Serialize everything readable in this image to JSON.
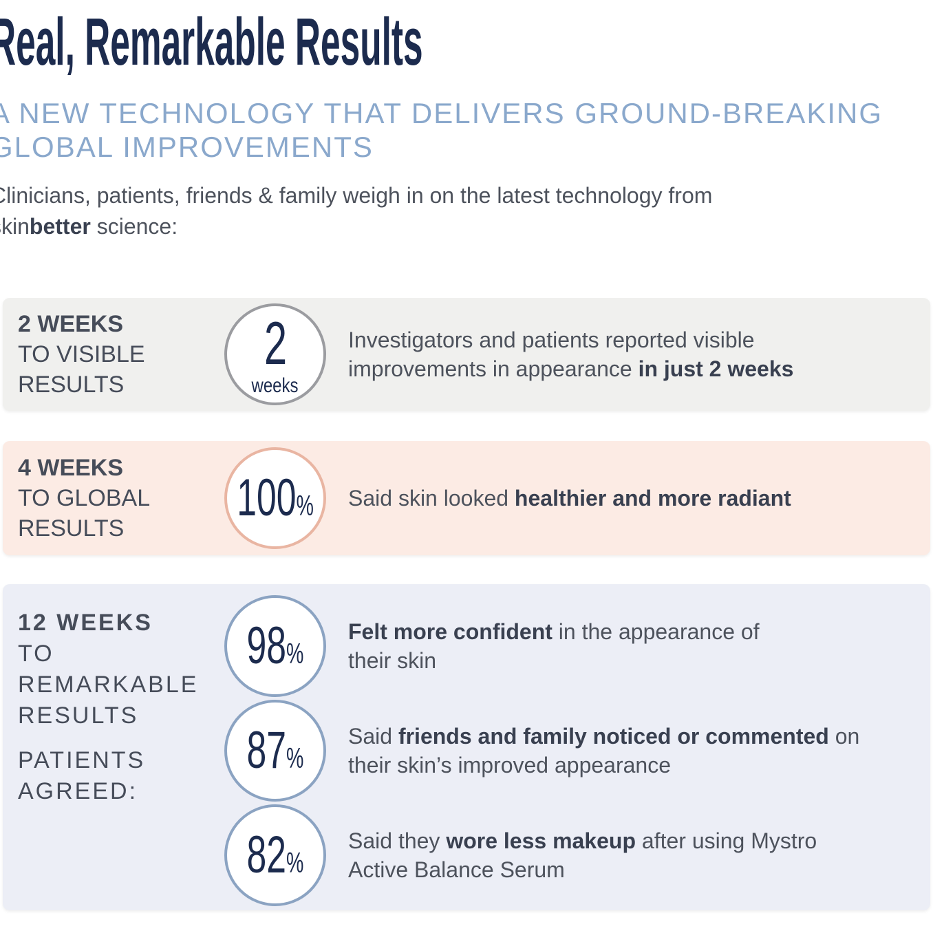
{
  "colors": {
    "navy": "#1c2b4e",
    "subtitle-blue": "#8aa8cc",
    "text-gray": "#4d525c",
    "bold-gray": "#394050",
    "label-gray": "#464c59",
    "band1-bg": "#f0f0ee",
    "band2-bg": "#fcebe4",
    "band3-bg": "#eceef6",
    "circle1-border": "#9b9ca0",
    "circle2-border": "#e9b5a2",
    "circle3-border": "#8ba3c2"
  },
  "header": {
    "title": "Real, Remarkable Results",
    "subtitle_line1": "A NEW TECHNOLOGY THAT DELIVERS GROUND-BREAKING",
    "subtitle_line2": "GLOBAL IMPROVEMENTS",
    "intro_line1": "Clinicians, patients, friends & family weigh in on the latest technology from",
    "intro_line2_pre": "skin",
    "intro_line2_bold": "better",
    "intro_line2_post": " science:"
  },
  "bands": [
    {
      "label_bold": "2 WEEKS",
      "label_line2": "TO VISIBLE",
      "label_line3": "RESULTS",
      "circle_number": "2",
      "circle_unit": "weeks",
      "text_pre": "Investigators and patients reported visible improvements in appearance ",
      "text_bold": "in just 2 weeks",
      "text_post": ""
    },
    {
      "label_bold": "4 WEEKS",
      "label_line2": "TO GLOBAL",
      "label_line3": "RESULTS",
      "circle_number": "100",
      "circle_pct": "%",
      "text_pre": "Said skin looked ",
      "text_bold": "healthier and more radiant",
      "text_post": ""
    },
    {
      "label_bold": "12 WEEKS",
      "label_lines": [
        "TO",
        "REMARKABLE",
        "RESULTS"
      ],
      "label2_lines": [
        "PATIENTS",
        "AGREED:"
      ],
      "rows": [
        {
          "number": "98",
          "pct": "%",
          "text_pre": "",
          "text_bold": "Felt more confident",
          "text_post": " in the appearance of their skin"
        },
        {
          "number": "87",
          "pct": "%",
          "text_pre": "Said ",
          "text_bold": "friends and family noticed or commented",
          "text_post": " on their skin’s improved appearance"
        },
        {
          "number": "82",
          "pct": "%",
          "text_pre": "Said they ",
          "text_bold": "wore less makeup",
          "text_post": " after using Mystro Active Balance Serum"
        }
      ]
    }
  ]
}
